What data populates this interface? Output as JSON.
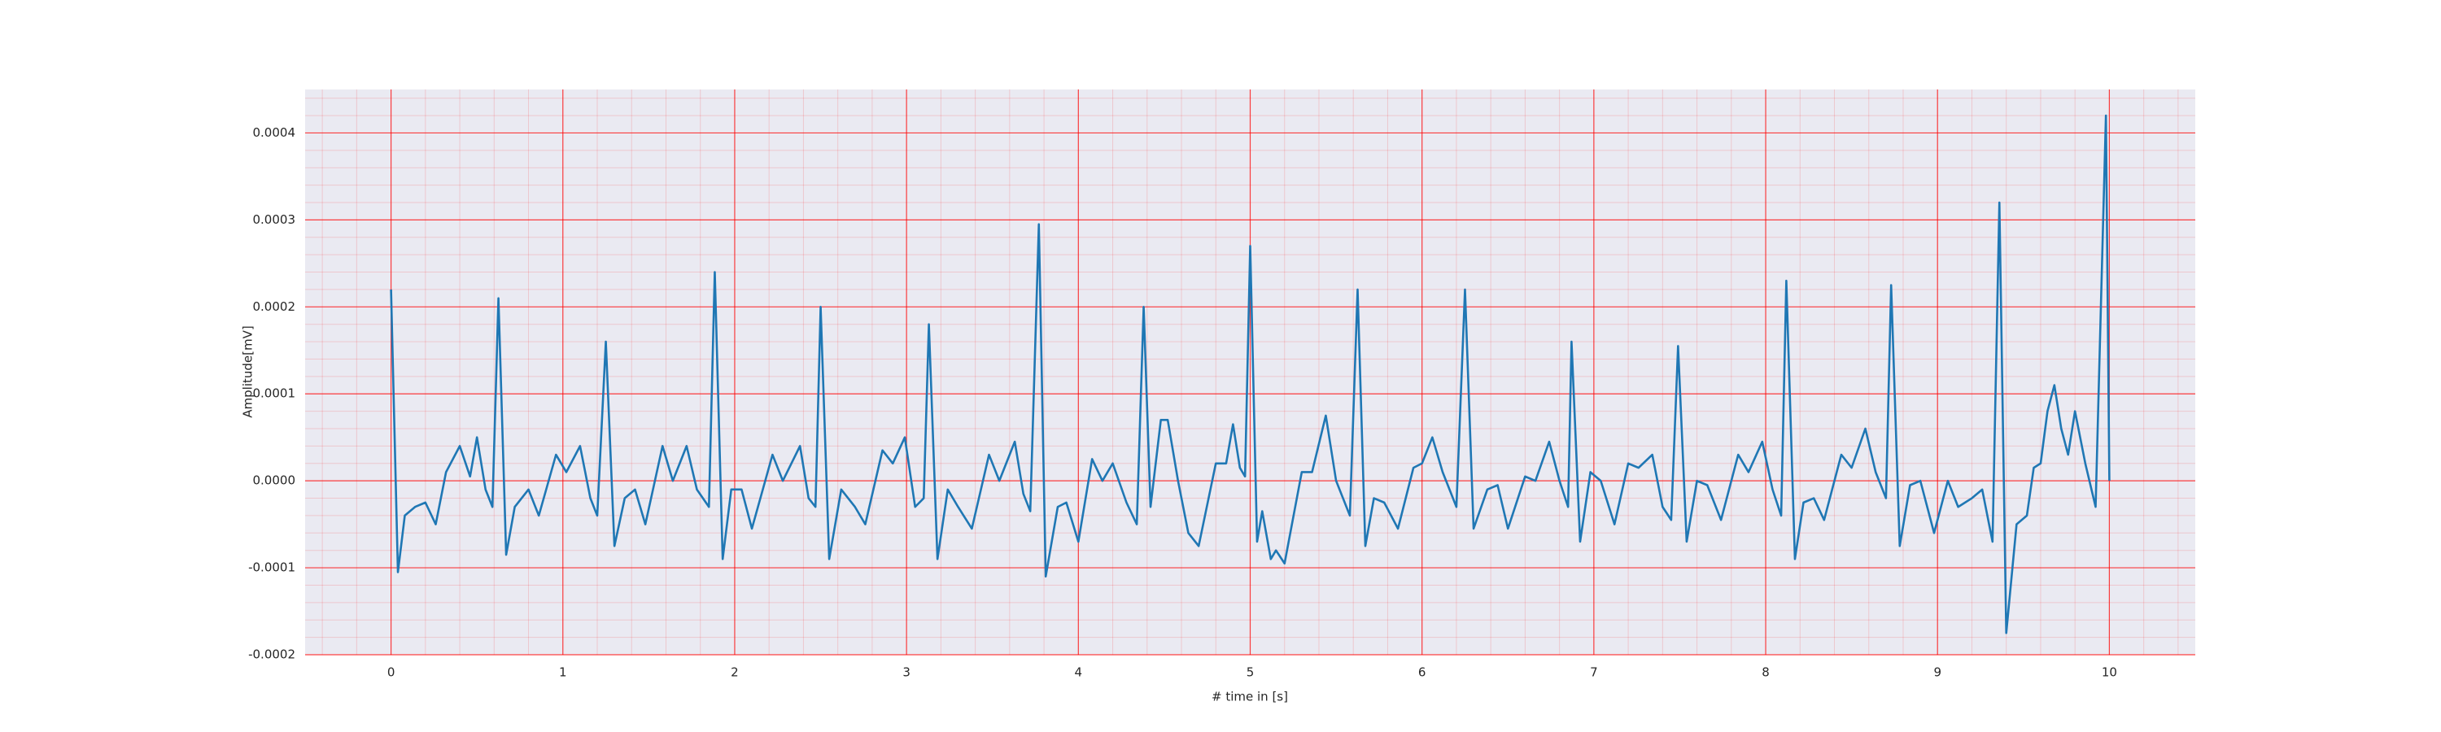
{
  "chart_data": {
    "type": "line",
    "xlabel": "# time in [s]",
    "ylabel": "Amplitude[mV]",
    "xlim": [
      -0.5,
      10.5
    ],
    "xticks": [
      0,
      1,
      2,
      3,
      4,
      5,
      6,
      7,
      8,
      9,
      10
    ],
    "ylim": [
      -0.0002,
      0.00045
    ],
    "yticks": [
      {
        "value": -0.0002,
        "label": "-0.0002"
      },
      {
        "value": -0.0001,
        "label": "-0.0001"
      },
      {
        "value": 0,
        "label": "0.0000"
      },
      {
        "value": 0.0001,
        "label": "0.0001"
      },
      {
        "value": 0.0002,
        "label": "0.0002"
      },
      {
        "value": 0.0003,
        "label": "0.0003"
      },
      {
        "value": 0.0004,
        "label": "0.0004"
      }
    ],
    "grid": true,
    "minor_grid": true,
    "grid_color": "#ff0000",
    "background": "#eaeaf2",
    "series": [
      {
        "color": "#1f77b4",
        "x": [
          0,
          0.04,
          0.08,
          0.14,
          0.2,
          0.26,
          0.32,
          0.4,
          0.46,
          0.5,
          0.55,
          0.59,
          0.625,
          0.67,
          0.72,
          0.8,
          0.86,
          0.96,
          1.02,
          1.1,
          1.16,
          1.2,
          1.25,
          1.3,
          1.36,
          1.42,
          1.48,
          1.58,
          1.64,
          1.72,
          1.78,
          1.85,
          1.884,
          1.93,
          1.98,
          2.04,
          2.1,
          2.22,
          2.28,
          2.38,
          2.43,
          2.47,
          2.5,
          2.55,
          2.62,
          2.7,
          2.76,
          2.86,
          2.92,
          2.99,
          3.05,
          3.1,
          3.13,
          3.18,
          3.24,
          3.3,
          3.38,
          3.48,
          3.54,
          3.63,
          3.68,
          3.72,
          3.77,
          3.81,
          3.88,
          3.93,
          4.0,
          4.08,
          4.14,
          4.2,
          4.28,
          4.34,
          4.38,
          4.42,
          4.48,
          4.52,
          4.58,
          4.64,
          4.7,
          4.8,
          4.86,
          4.9,
          4.94,
          4.97,
          5.0,
          5.04,
          5.07,
          5.12,
          5.15,
          5.2,
          5.3,
          5.36,
          5.44,
          5.5,
          5.58,
          5.625,
          5.67,
          5.72,
          5.78,
          5.86,
          5.95,
          6.0,
          6.06,
          6.12,
          6.2,
          6.25,
          6.3,
          6.38,
          6.44,
          6.5,
          6.6,
          6.66,
          6.74,
          6.8,
          6.85,
          6.87,
          6.92,
          6.98,
          7.04,
          7.12,
          7.2,
          7.26,
          7.34,
          7.4,
          7.45,
          7.49,
          7.54,
          7.6,
          7.66,
          7.74,
          7.84,
          7.9,
          7.98,
          8.04,
          8.09,
          8.12,
          8.17,
          8.22,
          8.28,
          8.34,
          8.44,
          8.5,
          8.58,
          8.64,
          8.7,
          8.73,
          8.78,
          8.84,
          8.9,
          8.98,
          9.06,
          9.12,
          9.2,
          9.26,
          9.32,
          9.36,
          9.4,
          9.46,
          9.52,
          9.56,
          9.6,
          9.64,
          9.68,
          9.72,
          9.76,
          9.8,
          9.86,
          9.92,
          9.98,
          10.0
        ],
        "values": [
          0.00022,
          -0.000105,
          -4e-05,
          -3e-05,
          -2.5e-05,
          -5e-05,
          1e-05,
          4e-05,
          5e-06,
          5e-05,
          -1e-05,
          -3e-05,
          0.00021,
          -8.5e-05,
          -3e-05,
          -1e-05,
          -4e-05,
          3e-05,
          1e-05,
          4e-05,
          -2e-05,
          -4e-05,
          0.00016,
          -7.5e-05,
          -2e-05,
          -1e-05,
          -5e-05,
          4e-05,
          0,
          4e-05,
          -1e-05,
          -3e-05,
          0.00024,
          -9e-05,
          -1e-05,
          -1e-05,
          -5.5e-05,
          3e-05,
          0,
          4e-05,
          -2e-05,
          -3e-05,
          0.0002,
          -9e-05,
          -1e-05,
          -3e-05,
          -5e-05,
          3.5e-05,
          2e-05,
          5e-05,
          -3e-05,
          -2e-05,
          0.00018,
          -9e-05,
          -1e-05,
          -3e-05,
          -5.5e-05,
          3e-05,
          0,
          4.5e-05,
          -1.5e-05,
          -3.5e-05,
          0.000295,
          -0.00011,
          -3e-05,
          -2.5e-05,
          -7e-05,
          2.5e-05,
          0,
          2e-05,
          -2.5e-05,
          -5e-05,
          0.0002,
          -3e-05,
          7e-05,
          7e-05,
          0,
          -6e-05,
          -7.5e-05,
          2e-05,
          2e-05,
          6.5e-05,
          1.5e-05,
          5e-06,
          0.00027,
          -7e-05,
          -3.5e-05,
          -9e-05,
          -8e-05,
          -9.5e-05,
          1e-05,
          1e-05,
          7.5e-05,
          0,
          -4e-05,
          0.00022,
          -7.5e-05,
          -2e-05,
          -2.5e-05,
          -5.5e-05,
          1.5e-05,
          2e-05,
          5e-05,
          1e-05,
          -3e-05,
          0.00022,
          -5.5e-05,
          -1e-05,
          -5e-06,
          -5.5e-05,
          5e-06,
          0,
          4.5e-05,
          0,
          -3e-05,
          0.00016,
          -7e-05,
          1e-05,
          0,
          -5e-05,
          2e-05,
          1.5e-05,
          3e-05,
          -3e-05,
          -4.5e-05,
          0.000155,
          -7e-05,
          0,
          -5e-06,
          -4.5e-05,
          3e-05,
          1e-05,
          4.5e-05,
          -1e-05,
          -4e-05,
          0.00023,
          -9e-05,
          -2.5e-05,
          -2e-05,
          -4.5e-05,
          3e-05,
          1.5e-05,
          6e-05,
          1e-05,
          -2e-05,
          0.000225,
          -7.5e-05,
          -5e-06,
          0,
          -6e-05,
          0,
          -3e-05,
          -2e-05,
          -1e-05,
          -7e-05,
          0.00032,
          -0.000175,
          -5e-05,
          -4e-05,
          1.5e-05,
          2e-05,
          8e-05,
          0.00011,
          6e-05,
          3e-05,
          8e-05,
          2e-05,
          -3e-05,
          0.00042,
          0
        ]
      }
    ]
  }
}
